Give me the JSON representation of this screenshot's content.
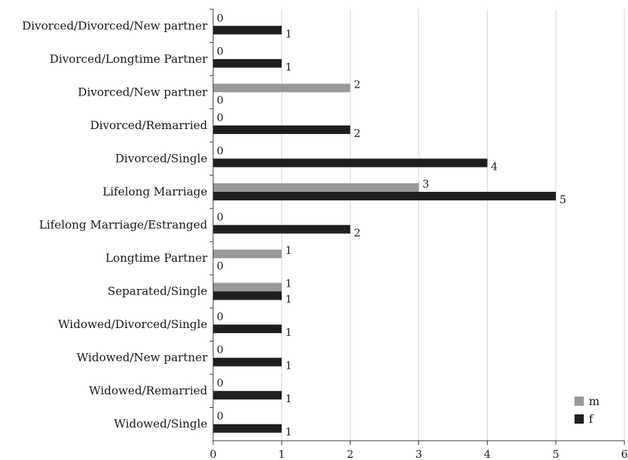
{
  "chart_data": {
    "type": "bar",
    "orientation": "horizontal",
    "categories": [
      "Divorced/Divorced/New partner",
      "Divorced/Longtime Partner",
      "Divorced/New partner",
      "Divorced/Remarried",
      "Divorced/Single",
      "Lifelong Marriage",
      "Lifelong Marriage/Estranged",
      "Longtime Partner",
      "Separated/Single",
      "Widowed/Divorced/Single",
      "Widowed/New partner",
      "Widowed/Remarried",
      "Widowed/Single"
    ],
    "series": [
      {
        "name": "m",
        "color": "#999999",
        "values": [
          0,
          0,
          2,
          0,
          0,
          3,
          0,
          1,
          1,
          0,
          0,
          0,
          0
        ]
      },
      {
        "name": "f",
        "color": "#1f1f1f",
        "values": [
          1,
          1,
          0,
          2,
          4,
          5,
          2,
          0,
          1,
          1,
          1,
          1,
          1
        ]
      }
    ],
    "xlim": [
      0,
      6
    ],
    "xticks": [
      "0",
      "1",
      "2",
      "3",
      "4",
      "5",
      "6"
    ],
    "grid": "vertical",
    "legend": "bottom-right",
    "data_labels": true,
    "title": "",
    "xlabel": "",
    "ylabel": ""
  }
}
